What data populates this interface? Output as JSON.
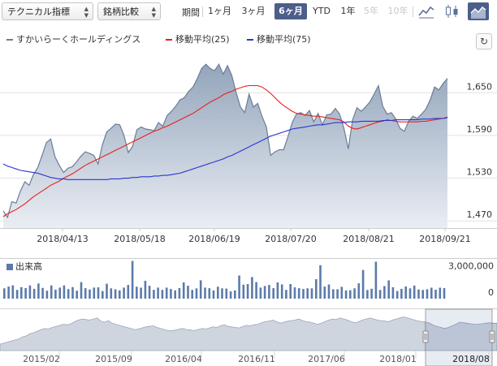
{
  "toolbar": {
    "technical_label": "テクニカル指標",
    "compare_label": "銘柄比較",
    "period_label": "期間",
    "periods": [
      "1ヶ月",
      "3ヶ月",
      "6ヶ月",
      "YTD",
      "1年",
      "5年",
      "10年"
    ],
    "active_period": "6ヶ月",
    "disabled_periods": [
      "5年",
      "10年"
    ],
    "icons": [
      "line-chart-icon",
      "candlestick-icon",
      "area-chart-icon"
    ],
    "active_icon": "area-chart-icon",
    "accent_color": "#4c5e8a"
  },
  "legend": {
    "price": "すかいらーくホールディングス",
    "ma25": "移動平均(25)",
    "ma75": "移動平均(75)",
    "colors": {
      "price": "#6b7d96",
      "ma25": "#e8201c",
      "ma75": "#2a35d4"
    }
  },
  "refresh_icon": "refresh-icon",
  "chart_data": [
    {
      "type": "area",
      "x_tick_labels": [
        "2018/04/13",
        "2018/05/18",
        "2018/06/19",
        "2018/07/20",
        "2018/08/21",
        "2018/09/21"
      ],
      "y_tick_labels": [
        "1,650",
        "1,590",
        "1,530",
        "1,470"
      ],
      "ylim": [
        1460,
        1705
      ],
      "grid": true,
      "legend_position": "top-left",
      "series": [
        {
          "name": "すかいらーくホールディングス",
          "color": "#6b7d96",
          "values": [
            1484,
            1475,
            1497,
            1495,
            1512,
            1525,
            1520,
            1535,
            1545,
            1562,
            1580,
            1585,
            1560,
            1548,
            1538,
            1544,
            1546,
            1553,
            1561,
            1567,
            1565,
            1562,
            1550,
            1577,
            1595,
            1600,
            1606,
            1605,
            1590,
            1566,
            1575,
            1598,
            1602,
            1599,
            1598,
            1597,
            1608,
            1603,
            1618,
            1624,
            1631,
            1640,
            1643,
            1652,
            1658,
            1670,
            1684,
            1690,
            1684,
            1681,
            1690,
            1676,
            1688,
            1674,
            1650,
            1630,
            1622,
            1648,
            1630,
            1635,
            1617,
            1602,
            1562,
            1567,
            1570,
            1570,
            1588,
            1608,
            1620,
            1622,
            1618,
            1625,
            1609,
            1621,
            1605,
            1619,
            1620,
            1628,
            1620,
            1600,
            1571,
            1612,
            1629,
            1624,
            1630,
            1637,
            1648,
            1660,
            1631,
            1620,
            1622,
            1613,
            1600,
            1596,
            1610,
            1617,
            1614,
            1620,
            1627,
            1640,
            1658,
            1654,
            1663,
            1670
          ]
        },
        {
          "name": "移動平均(25)",
          "color": "#e8201c",
          "values": [
            1476,
            1480,
            1483,
            1486,
            1490,
            1494,
            1499,
            1504,
            1508,
            1512,
            1516,
            1520,
            1523,
            1526,
            1530,
            1533,
            1536,
            1540,
            1544,
            1548,
            1551,
            1554,
            1557,
            1560,
            1563,
            1566,
            1569,
            1572,
            1575,
            1578,
            1581,
            1584,
            1587,
            1590,
            1593,
            1596,
            1598,
            1601,
            1603,
            1606,
            1609,
            1612,
            1615,
            1618,
            1621,
            1625,
            1629,
            1633,
            1637,
            1640,
            1643,
            1647,
            1650,
            1652,
            1655,
            1657,
            1659,
            1660,
            1660,
            1660,
            1658,
            1654,
            1649,
            1643,
            1637,
            1632,
            1628,
            1624,
            1621,
            1620,
            1619,
            1618,
            1617,
            1617,
            1616,
            1615,
            1614,
            1613,
            1612,
            1609,
            1603,
            1600,
            1599,
            1601,
            1603,
            1605,
            1607,
            1609,
            1610,
            1612,
            1611,
            1610,
            1609,
            1609,
            1609,
            1609,
            1609,
            1610,
            1610,
            1611,
            1612,
            1613,
            1614,
            1616
          ]
        },
        {
          "name": "移動平均(75)",
          "color": "#2a35d4",
          "values": [
            1550,
            1547,
            1545,
            1543,
            1541,
            1540,
            1539,
            1538,
            1537,
            1535,
            1533,
            1531,
            1530,
            1529,
            1529,
            1528,
            1528,
            1528,
            1528,
            1528,
            1528,
            1528,
            1528,
            1528,
            1528,
            1529,
            1529,
            1529,
            1530,
            1530,
            1531,
            1531,
            1532,
            1532,
            1532,
            1533,
            1533,
            1534,
            1534,
            1535,
            1536,
            1537,
            1539,
            1541,
            1543,
            1545,
            1547,
            1549,
            1551,
            1553,
            1555,
            1557,
            1560,
            1562,
            1565,
            1568,
            1571,
            1574,
            1577,
            1580,
            1583,
            1586,
            1589,
            1591,
            1593,
            1595,
            1597,
            1599,
            1600,
            1601,
            1602,
            1603,
            1604,
            1605,
            1605,
            1606,
            1607,
            1608,
            1608,
            1608,
            1609,
            1609,
            1609,
            1610,
            1610,
            1610,
            1610,
            1610,
            1611,
            1611,
            1611,
            1612,
            1612,
            1612,
            1612,
            1612,
            1612,
            1613,
            1613,
            1613,
            1614,
            1614,
            1614,
            1615
          ]
        }
      ]
    },
    {
      "type": "bar",
      "title": "出来高",
      "y_tick_labels": [
        "3,000,000",
        "0"
      ],
      "ylim": [
        0,
        3100000
      ],
      "series": [
        {
          "name": "出来高",
          "color": "#5b7baa",
          "values": [
            820000,
            960000,
            1060000,
            700000,
            920000,
            840000,
            1050000,
            780000,
            1210000,
            850000,
            630000,
            1050000,
            720000,
            880000,
            1050000,
            760000,
            920000,
            630000,
            1320000,
            830000,
            730000,
            880000,
            900000,
            610000,
            1190000,
            820000,
            740000,
            660000,
            880000,
            1090000,
            3000000,
            950000,
            870000,
            1420000,
            1030000,
            700000,
            880000,
            700000,
            880000,
            770000,
            660000,
            840000,
            1290000,
            1030000,
            700000,
            820000,
            1460000,
            880000,
            830000,
            650000,
            950000,
            820000,
            800000,
            580000,
            650000,
            1840000,
            1110000,
            1160000,
            1720000,
            1320000,
            880000,
            1010000,
            1090000,
            830000,
            1290000,
            1130000,
            700000,
            1160000,
            900000,
            830000,
            770000,
            820000,
            820000,
            1550000,
            2660000,
            960000,
            1130000,
            750000,
            750000,
            940000,
            650000,
            670000,
            820000,
            1220000,
            2280000,
            690000,
            790000,
            2940000,
            700000,
            1000000,
            1450000,
            910000,
            610000,
            780000,
            970000,
            820000,
            1040000,
            730000,
            690000,
            750000,
            870000,
            710000,
            870000,
            840000
          ]
        }
      ]
    },
    {
      "type": "area",
      "title": "",
      "x_tick_labels": [
        "2015/02",
        "2015/09",
        "2016/04",
        "2016/11",
        "2017/06",
        "2018/01",
        "2018/08"
      ],
      "series": [
        {
          "name": "",
          "color": "#8393ab",
          "values": [
            12,
            14,
            16,
            18,
            20,
            22,
            26,
            28,
            32,
            34,
            37,
            40,
            42,
            41,
            44,
            46,
            48,
            50,
            49,
            51,
            55,
            58,
            60,
            59,
            58,
            60,
            62,
            56,
            54,
            57,
            52,
            50,
            48,
            46,
            44,
            42,
            40,
            41,
            43,
            45,
            46,
            47,
            44,
            42,
            40,
            38,
            38,
            39,
            41,
            42,
            40,
            39,
            38,
            40,
            42,
            41,
            43,
            45,
            44,
            47,
            49,
            46,
            45,
            44,
            43,
            46,
            48,
            47,
            49,
            50,
            53,
            55,
            56,
            58,
            55,
            52,
            54,
            56,
            57,
            58,
            60,
            57,
            55,
            54,
            52,
            50,
            52,
            55,
            58,
            60,
            59,
            62,
            60,
            58,
            55,
            53,
            55,
            58,
            60,
            62,
            60,
            58,
            57,
            56,
            55,
            58,
            60,
            62,
            64,
            62,
            60,
            58,
            56,
            55,
            54,
            52,
            48,
            46,
            44,
            42,
            44,
            47,
            50,
            54,
            53,
            52,
            51,
            50,
            50,
            51,
            52,
            53,
            52,
            52
          ]
        }
      ]
    }
  ]
}
